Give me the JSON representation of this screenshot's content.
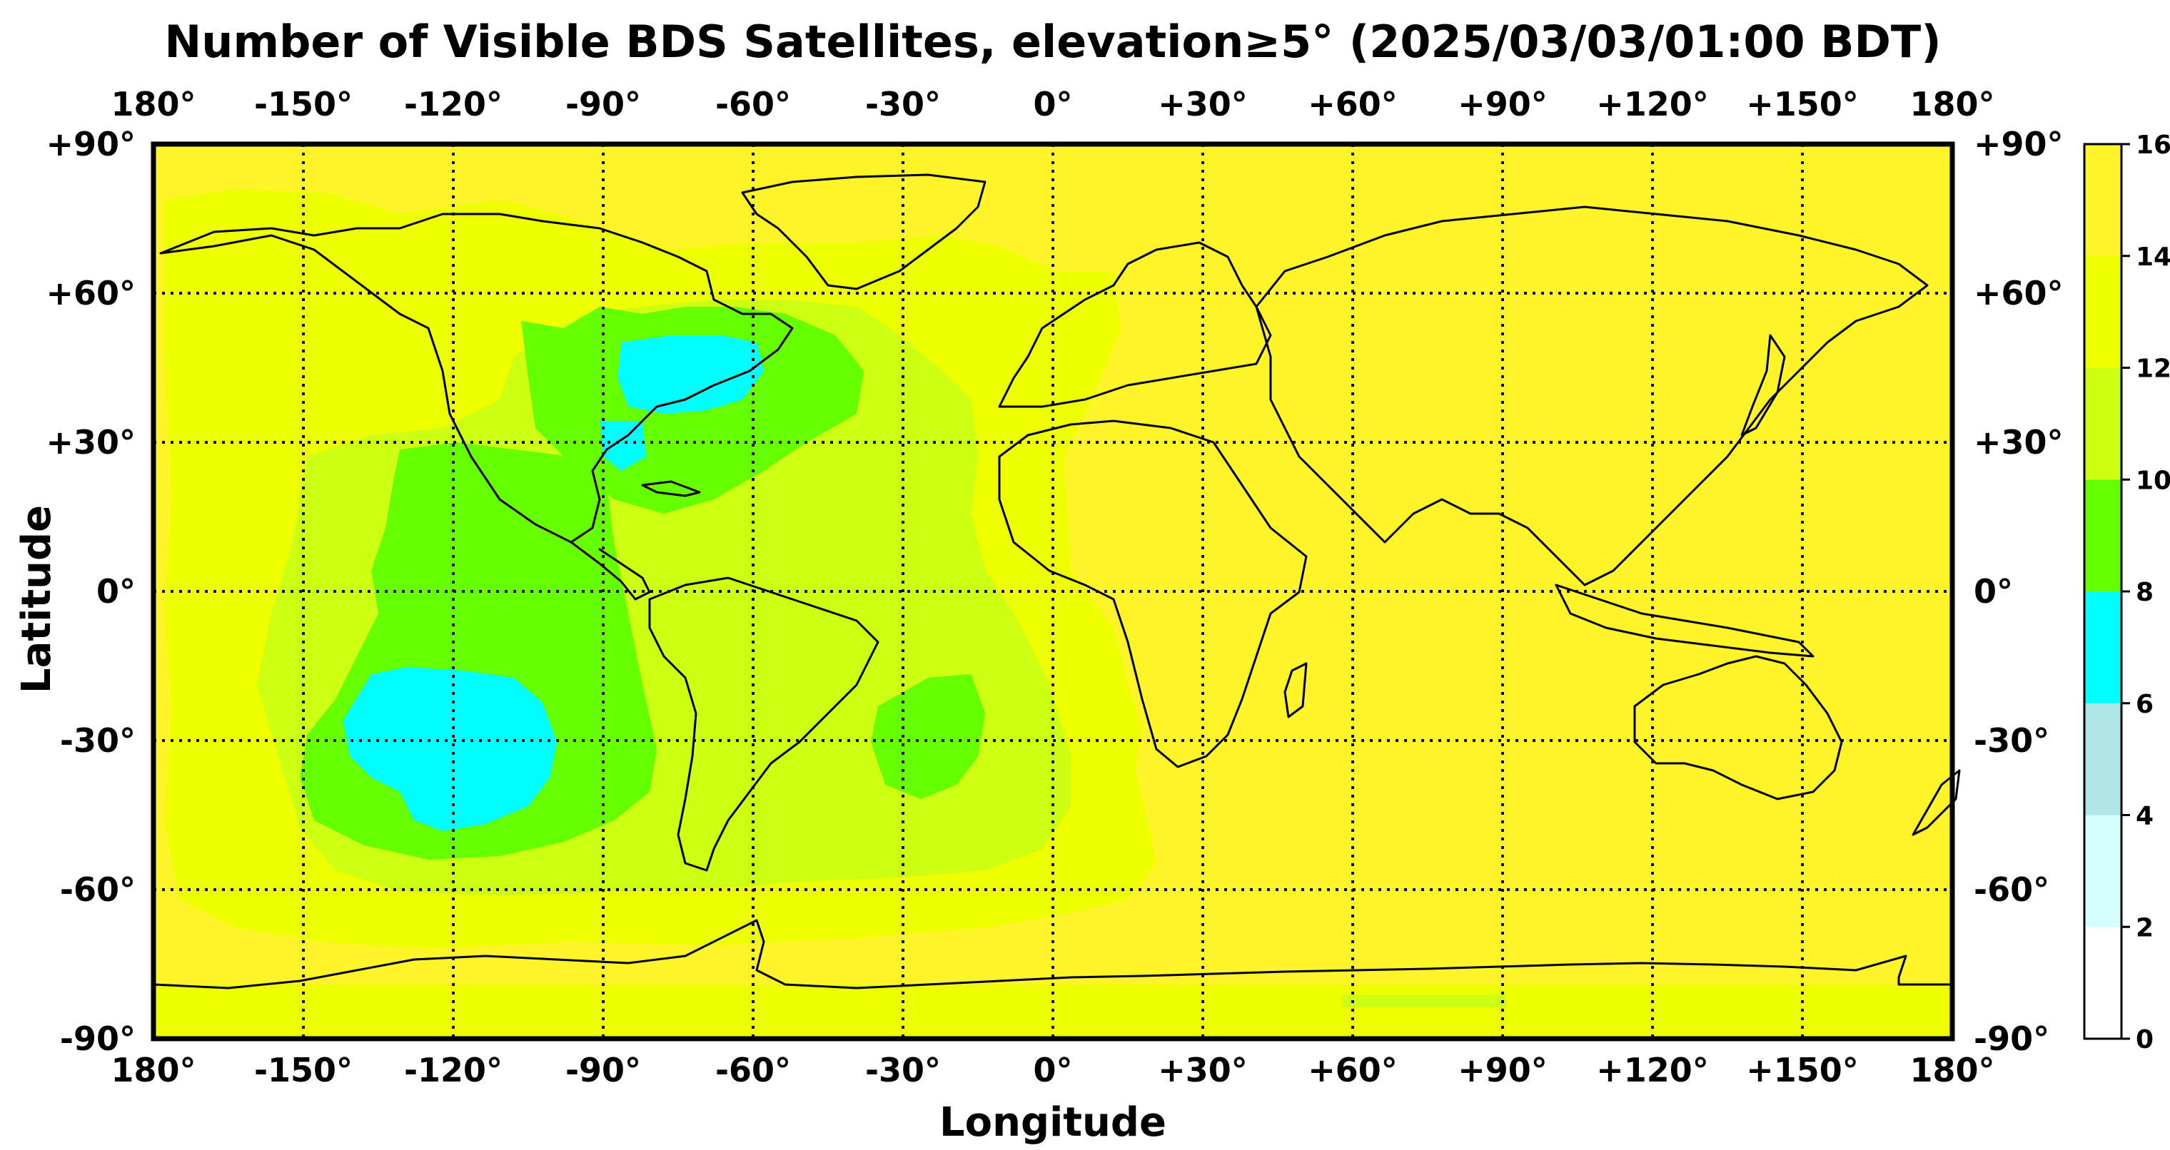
{
  "title": "Number of Visible BDS Satellites, elevation≥5° (2025/03/03/01:00 BDT)",
  "xlabel": "Longitude",
  "ylabel": "Latitude",
  "lon_ticks": [
    "180°",
    "-150°",
    "-120°",
    "-90°",
    "-60°",
    "-30°",
    "0°",
    "+30°",
    "+60°",
    "+90°",
    "+120°",
    "+150°",
    "180°"
  ],
  "lat_ticks": [
    "+90°",
    "+60°",
    "+30°",
    "0°",
    "-30°",
    "-60°",
    "-90°"
  ],
  "colorbar": {
    "ticks": [
      "0",
      "2",
      "4",
      "6",
      "8",
      "10",
      "12",
      "14",
      "16"
    ],
    "bins": [
      {
        "range": [
          0,
          2
        ],
        "color": "#ffffff"
      },
      {
        "range": [
          2,
          4
        ],
        "color": "#d4fefe"
      },
      {
        "range": [
          4,
          6
        ],
        "color": "#b0e6e6"
      },
      {
        "range": [
          6,
          8
        ],
        "color": "#00fefe"
      },
      {
        "range": [
          8,
          10
        ],
        "color": "#66ff00"
      },
      {
        "range": [
          10,
          12
        ],
        "color": "#ccff11"
      },
      {
        "range": [
          12,
          14
        ],
        "color": "#eeff00"
      },
      {
        "range": [
          14,
          16
        ],
        "color": "#fff32a"
      }
    ]
  },
  "chart_data": {
    "type": "heatmap",
    "title": "Number of Visible BDS Satellites, elevation≥5° (2025/03/03/01:00 BDT)",
    "xlabel": "Longitude",
    "ylabel": "Latitude",
    "xlim": [
      -180,
      180
    ],
    "ylim": [
      -90,
      90
    ],
    "colorbar_range": [
      0,
      16
    ],
    "grid": true,
    "colorbar_placement": "right",
    "background_level": "14-16",
    "regions": [
      {
        "level": "12-14",
        "lon": [
          -180,
          10
        ],
        "lat": [
          -80,
          75
        ],
        "description_level_only": true
      },
      {
        "level": "10-12",
        "lon": [
          -150,
          -15
        ],
        "lat": [
          -65,
          55
        ]
      },
      {
        "level": "8-10",
        "lon": [
          -132,
          -75
        ],
        "lat": [
          -58,
          35
        ]
      },
      {
        "level": "8-10",
        "lon": [
          -90,
          -40
        ],
        "lat": [
          22,
          58
        ]
      },
      {
        "level": "8-10",
        "lon": [
          -35,
          -10
        ],
        "lat": [
          -42,
          -12
        ]
      },
      {
        "level": "6-8",
        "lon": [
          -133,
          -97
        ],
        "lat": [
          -52,
          -16
        ]
      },
      {
        "level": "6-8",
        "lon": [
          -91,
          -63
        ],
        "lat": [
          37,
          50
        ]
      },
      {
        "level": "6-8",
        "lon": [
          -85,
          -79
        ],
        "lat": [
          27,
          32
        ]
      },
      {
        "level": "12-14",
        "lon": [
          -180,
          180
        ],
        "lat": [
          -90,
          -78
        ]
      },
      {
        "level": "10-12",
        "lon": [
          50,
          90
        ],
        "lat": [
          -83,
          -80
        ]
      }
    ]
  }
}
